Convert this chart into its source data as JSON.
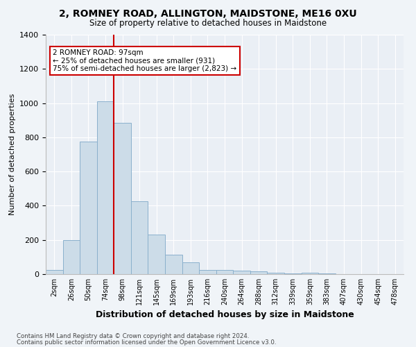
{
  "title": "2, ROMNEY ROAD, ALLINGTON, MAIDSTONE, ME16 0XU",
  "subtitle": "Size of property relative to detached houses in Maidstone",
  "xlabel": "Distribution of detached houses by size in Maidstone",
  "ylabel": "Number of detached properties",
  "categories": [
    "2sqm",
    "26sqm",
    "50sqm",
    "74sqm",
    "98sqm",
    "121sqm",
    "145sqm",
    "169sqm",
    "193sqm",
    "216sqm",
    "240sqm",
    "264sqm",
    "288sqm",
    "312sqm",
    "339sqm",
    "359sqm",
    "383sqm",
    "407sqm",
    "430sqm",
    "454sqm",
    "478sqm"
  ],
  "bar_heights": [
    25,
    200,
    775,
    1010,
    885,
    425,
    230,
    115,
    70,
    25,
    25,
    20,
    15,
    10,
    5,
    10,
    5,
    0,
    0,
    0,
    0
  ],
  "bar_color": "#ccdce8",
  "bar_edge_color": "#8ab0cc",
  "vline_color": "#cc0000",
  "annotation_text": "2 ROMNEY ROAD: 97sqm\n← 25% of detached houses are smaller (931)\n75% of semi-detached houses are larger (2,823) →",
  "annotation_box_color": "#ffffff",
  "annotation_box_edgecolor": "#cc0000",
  "ylim": [
    0,
    1400
  ],
  "yticks": [
    0,
    200,
    400,
    600,
    800,
    1000,
    1200,
    1400
  ],
  "footer1": "Contains HM Land Registry data © Crown copyright and database right 2024.",
  "footer2": "Contains public sector information licensed under the Open Government Licence v3.0.",
  "bg_color": "#f0f4f8",
  "plot_bg_color": "#eaeff5"
}
